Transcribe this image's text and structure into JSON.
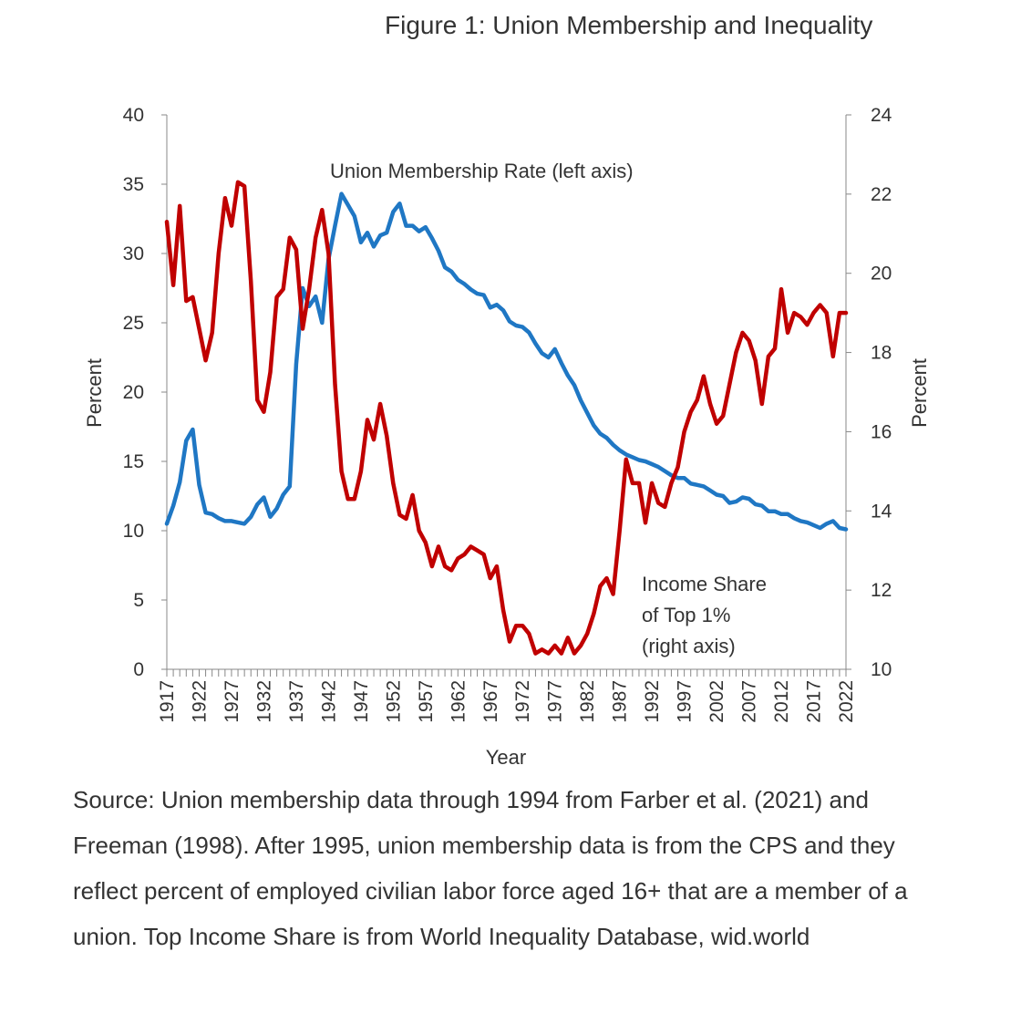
{
  "figure_title": "Figure 1: Union Membership and Inequality",
  "source_note": "Source: Union membership data through 1994 from Farber et al. (2021) and Freeman (1998).  After 1995, union membership data is from the CPS and they reflect percent of employed civilian labor force aged 16+ that are a member of a union.  Top Income Share is from World Inequality Database, wid.world",
  "chart_data": {
    "type": "line",
    "title": "Figure 1: Union Membership and Inequality",
    "xlabel": "Year",
    "ylabel_left": "Percent",
    "ylabel_right": "Percent",
    "ylim_left": [
      0,
      40
    ],
    "yticks_left": [
      0,
      5,
      10,
      15,
      20,
      25,
      30,
      35,
      40
    ],
    "ylim_right": [
      10,
      24
    ],
    "yticks_right": [
      10,
      12,
      14,
      16,
      18,
      20,
      22,
      24
    ],
    "xlim": [
      1917,
      2022
    ],
    "xticks": [
      1917,
      1922,
      1927,
      1932,
      1937,
      1942,
      1947,
      1952,
      1957,
      1962,
      1967,
      1972,
      1977,
      1982,
      1987,
      1992,
      1997,
      2002,
      2007,
      2012,
      2017,
      2022
    ],
    "annotations": {
      "union_label": "Union Membership Rate (left axis)",
      "income_label_lines": [
        "Income Share",
        "of Top 1%",
        "(right axis)"
      ]
    },
    "series": [
      {
        "name": "Union Membership Rate (left axis)",
        "axis": "left",
        "color": "#1f77c4",
        "x": [
          1917,
          1918,
          1919,
          1920,
          1921,
          1922,
          1923,
          1924,
          1925,
          1926,
          1927,
          1928,
          1929,
          1930,
          1931,
          1932,
          1933,
          1934,
          1935,
          1936,
          1937,
          1938,
          1939,
          1940,
          1941,
          1942,
          1943,
          1944,
          1945,
          1946,
          1947,
          1948,
          1949,
          1950,
          1951,
          1952,
          1953,
          1954,
          1955,
          1956,
          1957,
          1958,
          1959,
          1960,
          1961,
          1962,
          1963,
          1964,
          1965,
          1966,
          1967,
          1968,
          1969,
          1970,
          1971,
          1972,
          1973,
          1974,
          1975,
          1976,
          1977,
          1978,
          1979,
          1980,
          1981,
          1982,
          1983,
          1984,
          1985,
          1986,
          1987,
          1988,
          1989,
          1990,
          1991,
          1992,
          1993,
          1994,
          1995,
          1996,
          1997,
          1998,
          1999,
          2000,
          2001,
          2002,
          2003,
          2004,
          2005,
          2006,
          2007,
          2008,
          2009,
          2010,
          2011,
          2012,
          2013,
          2014,
          2015,
          2016,
          2017,
          2018,
          2019,
          2020,
          2021,
          2022
        ],
        "values": [
          10.5,
          11.8,
          13.5,
          16.5,
          17.3,
          13.3,
          11.3,
          11.2,
          10.9,
          10.7,
          10.7,
          10.6,
          10.5,
          11.0,
          11.9,
          12.4,
          11.0,
          11.6,
          12.6,
          13.2,
          22.0,
          27.5,
          26.2,
          26.9,
          25.0,
          29.6,
          32.0,
          34.3,
          33.5,
          32.7,
          30.8,
          31.5,
          30.5,
          31.3,
          31.5,
          33.0,
          33.6,
          32.0,
          32.0,
          31.6,
          31.9,
          31.1,
          30.2,
          29.0,
          28.7,
          28.1,
          27.8,
          27.4,
          27.1,
          27.0,
          26.1,
          26.3,
          25.9,
          25.1,
          24.8,
          24.7,
          24.3,
          23.5,
          22.8,
          22.5,
          23.1,
          22.1,
          21.2,
          20.5,
          19.4,
          18.5,
          17.6,
          17.0,
          16.7,
          16.2,
          15.8,
          15.5,
          15.3,
          15.1,
          15.0,
          14.8,
          14.6,
          14.3,
          14.0,
          13.8,
          13.8,
          13.4,
          13.3,
          13.2,
          12.9,
          12.6,
          12.5,
          12.0,
          12.1,
          12.4,
          12.3,
          11.9,
          11.8,
          11.4,
          11.4,
          11.2,
          11.2,
          10.9,
          10.7,
          10.6,
          10.4,
          10.2,
          10.5,
          10.7,
          10.2,
          10.1
        ]
      },
      {
        "name": "Income Share of Top 1% (right axis)",
        "axis": "right",
        "color": "#c00000",
        "x": [
          1917,
          1918,
          1919,
          1920,
          1921,
          1922,
          1923,
          1924,
          1925,
          1926,
          1927,
          1928,
          1929,
          1930,
          1931,
          1932,
          1933,
          1934,
          1935,
          1936,
          1937,
          1938,
          1939,
          1940,
          1941,
          1942,
          1943,
          1944,
          1945,
          1946,
          1947,
          1948,
          1949,
          1950,
          1951,
          1952,
          1953,
          1954,
          1955,
          1956,
          1957,
          1958,
          1959,
          1960,
          1961,
          1962,
          1963,
          1964,
          1965,
          1966,
          1967,
          1968,
          1969,
          1970,
          1971,
          1972,
          1973,
          1974,
          1975,
          1976,
          1977,
          1978,
          1979,
          1980,
          1981,
          1982,
          1983,
          1984,
          1985,
          1986,
          1987,
          1988,
          1989,
          1990,
          1991,
          1992,
          1993,
          1994,
          1995,
          1996,
          1997,
          1998,
          1999,
          2000,
          2001,
          2002,
          2003,
          2004,
          2005,
          2006,
          2007,
          2008,
          2009,
          2010,
          2011,
          2012,
          2013,
          2014,
          2015,
          2016,
          2017,
          2018,
          2019,
          2020,
          2021,
          2022
        ],
        "values": [
          21.3,
          19.7,
          21.7,
          19.3,
          19.4,
          18.6,
          17.8,
          18.5,
          20.5,
          21.9,
          21.2,
          22.3,
          22.2,
          19.8,
          16.8,
          16.5,
          17.5,
          19.4,
          19.6,
          20.9,
          20.6,
          18.6,
          19.6,
          20.9,
          21.6,
          20.5,
          17.2,
          15.0,
          14.3,
          14.3,
          15.0,
          16.3,
          15.8,
          16.7,
          15.9,
          14.7,
          13.9,
          13.8,
          14.4,
          13.5,
          13.2,
          12.6,
          13.1,
          12.6,
          12.5,
          12.8,
          12.9,
          13.1,
          13.0,
          12.9,
          12.3,
          12.6,
          11.5,
          10.7,
          11.1,
          11.1,
          10.9,
          10.4,
          10.5,
          10.4,
          10.6,
          10.4,
          10.8,
          10.4,
          10.6,
          10.9,
          11.4,
          12.1,
          12.3,
          11.9,
          13.5,
          15.3,
          14.7,
          14.7,
          13.7,
          14.7,
          14.2,
          14.1,
          14.7,
          15.1,
          16.0,
          16.5,
          16.8,
          17.4,
          16.7,
          16.2,
          16.4,
          17.2,
          18.0,
          18.5,
          18.3,
          17.8,
          16.7,
          17.9,
          18.1,
          19.6,
          18.5,
          19.0,
          18.9,
          18.7,
          19.0,
          19.2,
          19.0,
          17.9,
          19.0,
          19.0
        ]
      }
    ]
  }
}
